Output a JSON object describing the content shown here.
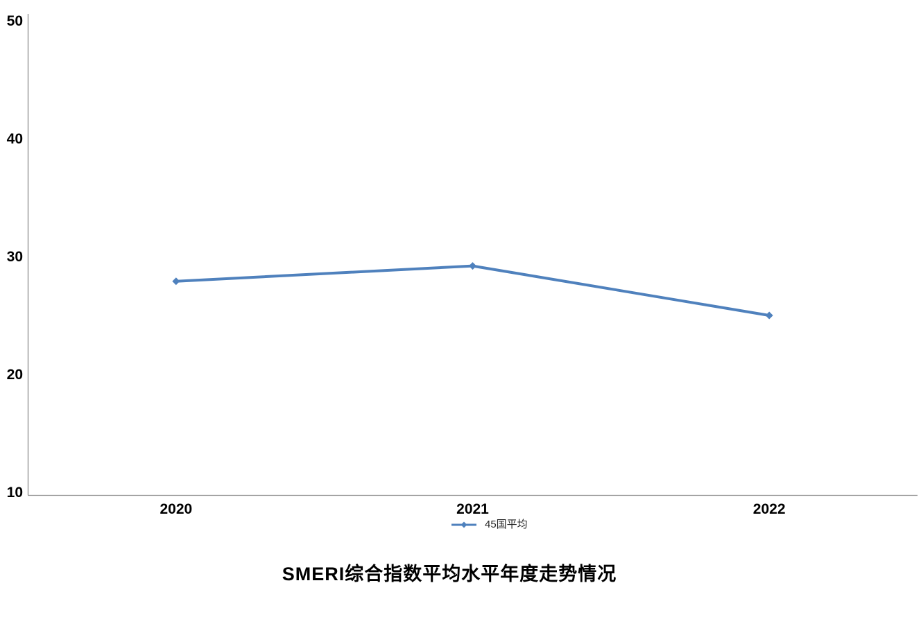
{
  "chart_data": {
    "type": "line",
    "title": "SMERI综合指数平均水平年度走势情况",
    "xlabel": "",
    "ylabel": "",
    "categories": [
      "2020",
      "2021",
      "2022"
    ],
    "series": [
      {
        "name": "45国平均",
        "values": [
          27.9,
          29.2,
          25.0
        ],
        "color": "#4f81bd",
        "marker": "diamond"
      }
    ],
    "ylim": [
      10,
      50
    ],
    "yticks": [
      10,
      20,
      30,
      40,
      50
    ],
    "grid": false,
    "legend_position": "bottom-center",
    "axis_color": "#8c8c8c",
    "text_color": "#000000"
  }
}
